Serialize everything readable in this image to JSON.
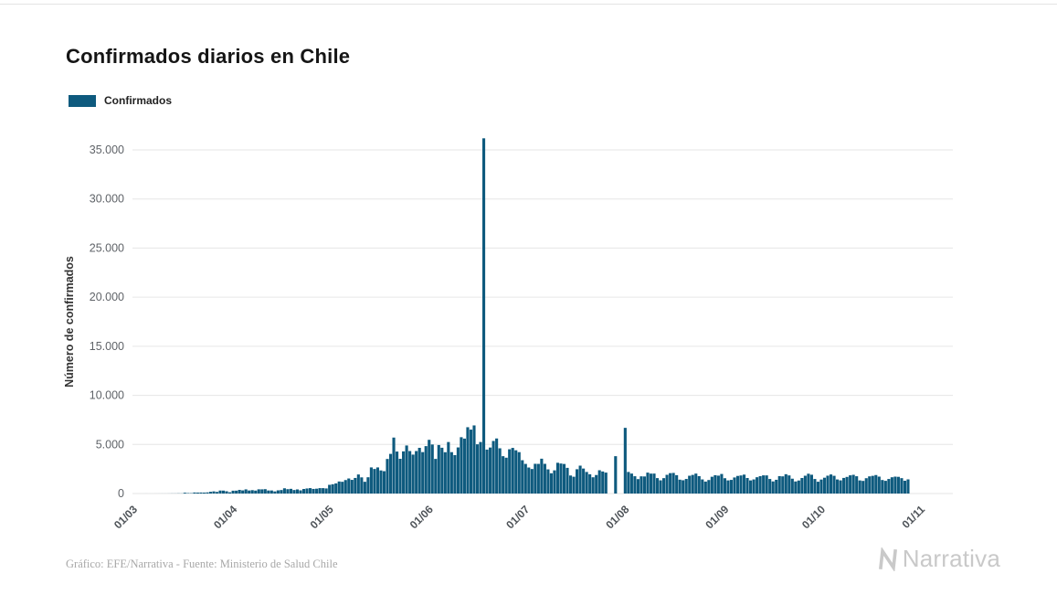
{
  "page": {
    "title": "Confirmados diarios en Chile",
    "footer_credit": "Gráfico: EFE/Narrativa - Fuente: Ministerio de Salud Chile",
    "brand_name": "Narrativa"
  },
  "legend": {
    "label": "Confirmados",
    "color": "#0e5a7e"
  },
  "icons": {
    "brand_mark": "narrativa-n-logo"
  },
  "colors": {
    "bar": "#0e5a7e",
    "grid": "#e6e6e6",
    "tick_text": "#5f6368",
    "axis_title": "#333333",
    "brand_gray": "#c9c9c9"
  },
  "chart_data": {
    "type": "bar",
    "title": "Confirmados diarios en Chile",
    "xlabel": "",
    "ylabel": "Número de confirmados",
    "legend": [
      "Confirmados"
    ],
    "legend_position": "top-left",
    "grid": true,
    "bar_color": "#0e5a7e",
    "x_unit": "day",
    "x_start_label": "01/03",
    "ylim": [
      0,
      36500
    ],
    "yticks": [
      0,
      5000,
      10000,
      15000,
      20000,
      25000,
      30000,
      35000
    ],
    "ytick_labels": [
      "0",
      "5.000",
      "10.000",
      "15.000",
      "20.000",
      "25.000",
      "30.000",
      "35.000"
    ],
    "xticks": [
      {
        "label": "01/03",
        "index": 0
      },
      {
        "label": "01/04",
        "index": 31
      },
      {
        "label": "01/05",
        "index": 61
      },
      {
        "label": "01/06",
        "index": 92
      },
      {
        "label": "01/07",
        "index": 122
      },
      {
        "label": "01/08",
        "index": 153
      },
      {
        "label": "01/09",
        "index": 184
      },
      {
        "label": "01/10",
        "index": 214
      },
      {
        "label": "01/11",
        "index": 245
      }
    ],
    "values": [
      0,
      0,
      1,
      2,
      1,
      1,
      2,
      3,
      4,
      4,
      6,
      10,
      10,
      18,
      14,
      81,
      46,
      37,
      104,
      96,
      103,
      95,
      114,
      176,
      220,
      164,
      304,
      299,
      230,
      128,
      289,
      293,
      373,
      320,
      424,
      310,
      344,
      301,
      430,
      426,
      445,
      310,
      312,
      216,
      325,
      356,
      534,
      445,
      478,
      358,
      419,
      325,
      464,
      516,
      552,
      470,
      494,
      552,
      549,
      520,
      888,
      947,
      1032,
      1228,
      1197,
      1373,
      1533,
      1392,
      1587,
      1941,
      1647,
      1197,
      1658,
      2660,
      2502,
      2659,
      2353,
      2278,
      3520,
      4038,
      5700,
      4276,
      3536,
      4295,
      4895,
      4328,
      3964,
      4328,
      4654,
      4220,
      4830,
      5471,
      4992,
      3527,
      4942,
      4664,
      4207,
      5246,
      4216,
      3913,
      4696,
      5737,
      5596,
      6754,
      6509,
      6938,
      5013,
      5249,
      36179,
      4475,
      4685,
      5355,
      5607,
      4608,
      3804,
      3649,
      4509,
      4648,
      4406,
      4216,
      3394,
      3018,
      2650,
      2498,
      3028,
      3021,
      3548,
      3025,
      2462,
      2064,
      2362,
      3133,
      3058,
      3012,
      2616,
      1836,
      1712,
      2475,
      2840,
      2545,
      2198,
      1961,
      1656,
      1886,
      2371,
      2245,
      2133,
      0,
      0,
      3804,
      0,
      0,
      6690,
      2198,
      2033,
      1762,
      1469,
      1752,
      1739,
      2131,
      2029,
      2033,
      1572,
      1345,
      1568,
      1906,
      2077,
      2099,
      1871,
      1411,
      1353,
      1486,
      1812,
      1898,
      2031,
      1769,
      1437,
      1218,
      1377,
      1709,
      1868,
      1822,
      1993,
      1560,
      1339,
      1390,
      1636,
      1794,
      1841,
      1927,
      1583,
      1338,
      1437,
      1660,
      1770,
      1851,
      1847,
      1484,
      1232,
      1400,
      1774,
      1751,
      1968,
      1846,
      1512,
      1229,
      1327,
      1581,
      1813,
      2017,
      1915,
      1481,
      1203,
      1424,
      1612,
      1818,
      1943,
      1807,
      1434,
      1343,
      1590,
      1693,
      1855,
      1907,
      1761,
      1336,
      1286,
      1562,
      1748,
      1803,
      1883,
      1723,
      1379,
      1294,
      1484,
      1658,
      1721,
      1702,
      1568,
      1301,
      1443
    ]
  }
}
